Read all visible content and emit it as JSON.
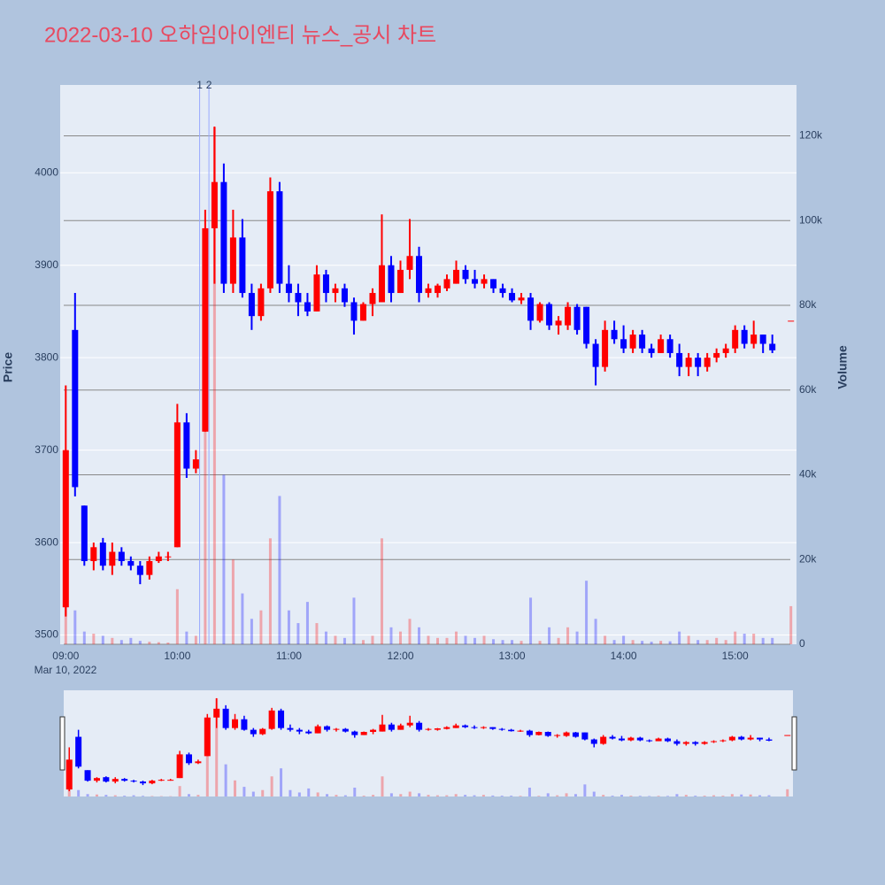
{
  "chart_data": {
    "type": "candlestick",
    "title": "2022-03-10 오하임아이엔티 뉴스_공시 차트",
    "y_label": "Price",
    "y2_label": "Volume",
    "increasing_color": "#ff0000",
    "decreasing_color": "#0000ff",
    "x_date_label": "Mar 10, 2022",
    "x": [
      "09:00",
      "09:05",
      "09:10",
      "09:15",
      "09:20",
      "09:25",
      "09:30",
      "09:35",
      "09:40",
      "09:45",
      "09:50",
      "09:55",
      "10:00",
      "10:05",
      "10:10",
      "10:15",
      "10:20",
      "10:25",
      "10:30",
      "10:35",
      "10:40",
      "10:45",
      "10:50",
      "10:55",
      "11:00",
      "11:05",
      "11:10",
      "11:15",
      "11:20",
      "11:25",
      "11:30",
      "11:35",
      "11:40",
      "11:45",
      "11:50",
      "11:55",
      "12:00",
      "12:05",
      "12:10",
      "12:15",
      "12:20",
      "12:25",
      "12:30",
      "12:35",
      "12:40",
      "12:45",
      "12:50",
      "12:55",
      "13:00",
      "13:05",
      "13:10",
      "13:15",
      "13:20",
      "13:25",
      "13:30",
      "13:35",
      "13:40",
      "13:45",
      "13:50",
      "13:55",
      "14:00",
      "14:05",
      "14:10",
      "14:15",
      "14:20",
      "14:25",
      "14:30",
      "14:35",
      "14:40",
      "14:45",
      "14:50",
      "14:55",
      "15:00",
      "15:05",
      "15:10",
      "15:15",
      "15:20",
      "15:30"
    ],
    "open": [
      3530,
      3830,
      3640,
      3580,
      3600,
      3575,
      3590,
      3580,
      3575,
      3565,
      3580,
      3585,
      3595,
      3730,
      3680,
      3720,
      3940,
      3990,
      3880,
      3930,
      3870,
      3845,
      3875,
      3980,
      3880,
      3870,
      3860,
      3850,
      3890,
      3870,
      3875,
      3860,
      3840,
      3858,
      3860,
      3900,
      3870,
      3895,
      3910,
      3870,
      3870,
      3875,
      3880,
      3895,
      3885,
      3880,
      3885,
      3875,
      3870,
      3862,
      3865,
      3840,
      3858,
      3835,
      3835,
      3855,
      3855,
      3815,
      3790,
      3830,
      3820,
      3810,
      3825,
      3810,
      3805,
      3820,
      3805,
      3790,
      3800,
      3790,
      3800,
      3805,
      3810,
      3830,
      3815,
      3825,
      3815,
      3840
    ],
    "high": [
      3770,
      3870,
      3640,
      3600,
      3605,
      3600,
      3595,
      3585,
      3580,
      3585,
      3590,
      3590,
      3750,
      3740,
      3700,
      3960,
      4050,
      4010,
      3960,
      3950,
      3880,
      3880,
      3995,
      3990,
      3900,
      3880,
      3870,
      3900,
      3895,
      3880,
      3880,
      3865,
      3860,
      3875,
      3955,
      3910,
      3905,
      3950,
      3920,
      3880,
      3880,
      3890,
      3905,
      3900,
      3895,
      3890,
      3885,
      3880,
      3875,
      3870,
      3870,
      3860,
      3860,
      3845,
      3860,
      3858,
      3855,
      3820,
      3840,
      3840,
      3835,
      3830,
      3830,
      3815,
      3825,
      3825,
      3815,
      3805,
      3805,
      3805,
      3810,
      3815,
      3835,
      3835,
      3840,
      3825,
      3825,
      3840
    ],
    "low": [
      3520,
      3650,
      3575,
      3570,
      3570,
      3565,
      3575,
      3570,
      3555,
      3560,
      3578,
      3580,
      3595,
      3670,
      3675,
      3720,
      3880,
      3870,
      3870,
      3865,
      3830,
      3840,
      3870,
      3870,
      3860,
      3845,
      3845,
      3850,
      3860,
      3860,
      3855,
      3825,
      3840,
      3845,
      3860,
      3860,
      3870,
      3885,
      3860,
      3865,
      3865,
      3872,
      3880,
      3880,
      3875,
      3875,
      3870,
      3865,
      3860,
      3858,
      3830,
      3838,
      3830,
      3825,
      3830,
      3825,
      3810,
      3770,
      3785,
      3815,
      3805,
      3805,
      3805,
      3800,
      3805,
      3800,
      3780,
      3780,
      3780,
      3785,
      3795,
      3800,
      3805,
      3810,
      3810,
      3805,
      3805,
      3840
    ],
    "close": [
      3700,
      3660,
      3580,
      3595,
      3575,
      3590,
      3580,
      3575,
      3565,
      3580,
      3585,
      3585,
      3730,
      3680,
      3690,
      3940,
      3990,
      3880,
      3930,
      3870,
      3845,
      3875,
      3980,
      3880,
      3870,
      3860,
      3850,
      3890,
      3870,
      3875,
      3860,
      3840,
      3858,
      3870,
      3900,
      3870,
      3895,
      3910,
      3870,
      3875,
      3878,
      3885,
      3895,
      3885,
      3880,
      3885,
      3875,
      3870,
      3862,
      3865,
      3840,
      3858,
      3835,
      3840,
      3855,
      3830,
      3815,
      3790,
      3830,
      3820,
      3810,
      3825,
      3810,
      3805,
      3820,
      3805,
      3790,
      3800,
      3790,
      3800,
      3805,
      3810,
      3830,
      3815,
      3825,
      3815,
      3808,
      3840
    ],
    "volume": [
      10000,
      8000,
      3000,
      2500,
      2000,
      1500,
      1000,
      1500,
      800,
      600,
      500,
      400,
      13000,
      3000,
      2000,
      80000,
      122000,
      40000,
      20000,
      12000,
      6000,
      8000,
      25000,
      35000,
      8000,
      5000,
      10000,
      5000,
      3000,
      2000,
      1500,
      11000,
      1000,
      2000,
      25000,
      4000,
      3000,
      6000,
      4000,
      2000,
      1500,
      1500,
      3000,
      2000,
      1500,
      2000,
      1200,
      1000,
      1000,
      800,
      11000,
      800,
      4000,
      1500,
      4000,
      3000,
      15000,
      6000,
      2000,
      1000,
      2000,
      1000,
      800,
      600,
      800,
      700,
      3000,
      2000,
      1000,
      1000,
      1500,
      1000,
      3000,
      2500,
      2500,
      1500,
      1500,
      9000
    ],
    "xlim": [
      "08:57",
      "15:33"
    ],
    "xticks": [
      "09:00",
      "10:00",
      "11:00",
      "12:00",
      "13:00",
      "14:00",
      "15:00"
    ],
    "ylim": [
      3490,
      4095
    ],
    "yticks": [
      3500,
      3600,
      3700,
      3800,
      3900,
      4000
    ],
    "y2lim": [
      0,
      132000
    ],
    "y2ticks": [
      0,
      {
        "value": 20000,
        "label": "20k"
      },
      {
        "value": 40000,
        "label": "40k"
      },
      {
        "value": 60000,
        "label": "60k"
      },
      {
        "value": 80000,
        "label": "80k"
      },
      {
        "value": 100000,
        "label": "100k"
      },
      {
        "value": 120000,
        "label": "120k"
      }
    ],
    "events": [
      {
        "x": "10:12",
        "label": "1"
      },
      {
        "x": "10:17",
        "label": "2"
      }
    ],
    "grid": true,
    "rangeslider": true
  }
}
